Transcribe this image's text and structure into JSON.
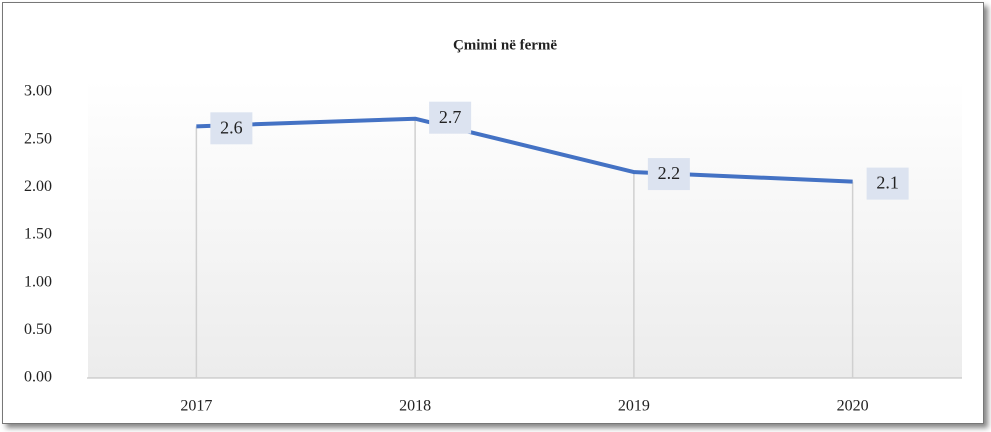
{
  "chart_data": {
    "type": "line",
    "title": "Çmimi në fermë",
    "categories": [
      "2017",
      "2018",
      "2019",
      "2020"
    ],
    "series": [
      {
        "name": "Çmimi në fermë",
        "color": "#4472c4",
        "values": [
          2.64,
          2.72,
          2.16,
          2.06
        ],
        "value_labels": [
          "2.6",
          "2.7",
          "2.2",
          "2.1"
        ]
      }
    ],
    "ylim": [
      0,
      3
    ],
    "yticks": [
      {
        "value": 0,
        "label": "0.00"
      },
      {
        "value": 0.5,
        "label": "0.50"
      },
      {
        "value": 1,
        "label": "1.00"
      },
      {
        "value": 1.5,
        "label": "1.50"
      },
      {
        "value": 2,
        "label": "2.00"
      },
      {
        "value": 2.5,
        "label": "2.50"
      },
      {
        "value": 3,
        "label": "3.00"
      }
    ]
  }
}
